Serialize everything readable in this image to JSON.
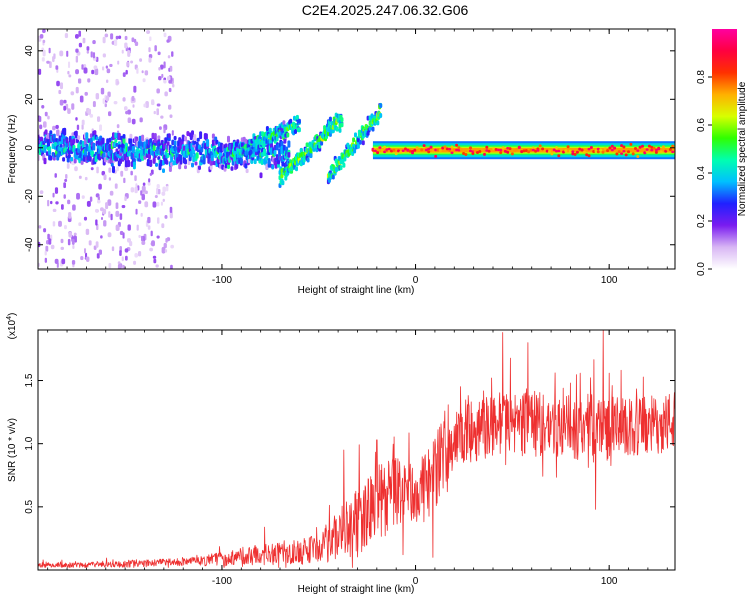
{
  "figure_title": "C2E4.2025.247.06.32.G06",
  "chart_data": [
    {
      "type": "heatmap",
      "title": "",
      "xlabel": "Height of straight line (km)",
      "ylabel": "Frequency (Hz)",
      "xlim": [
        -195,
        134
      ],
      "ylim": [
        -50,
        49
      ],
      "xticks": [
        -100,
        0,
        100
      ],
      "yticks": [
        -40,
        -20,
        0,
        20,
        40
      ],
      "colorbar": {
        "label": "Normalized spectral amplitude",
        "range": [
          0,
          1
        ],
        "ticks": [
          "0.0",
          "0.2",
          "0.4",
          "0.6",
          "0.8"
        ],
        "tick_values": [
          0.0,
          0.2,
          0.4,
          0.6,
          0.8
        ],
        "colors": [
          "#ffffff",
          "#d8b6f4",
          "#7a1cf0",
          "#2020ff",
          "#00c0ff",
          "#00ffb0",
          "#30ff00",
          "#d8ff00",
          "#ffb000",
          "#ff3000",
          "#ff0040",
          "#ff00a0"
        ]
      },
      "features": [
        {
          "name": "scattered low-level noise",
          "x_range": [
            -195,
            -125
          ],
          "freq_range": [
            -50,
            49
          ],
          "amplitude": 0.1
        },
        {
          "name": "noisy band",
          "x_range": [
            -195,
            -65
          ],
          "center_freq_start": 0,
          "center_freq_end": -3,
          "amplitude": 0.35
        },
        {
          "name": "rising streak 1",
          "x_range": [
            -95,
            -60
          ],
          "freq_start": -3,
          "freq_end": 10,
          "amplitude": 0.45
        },
        {
          "name": "rising streak 2",
          "x_range": [
            -70,
            -38
          ],
          "freq_start": -12,
          "freq_end": 12,
          "amplitude": 0.5
        },
        {
          "name": "rising streak 3",
          "x_range": [
            -45,
            -18
          ],
          "freq_start": -12,
          "freq_end": 15,
          "amplitude": 0.5
        },
        {
          "name": "steady strong band",
          "x_range": [
            -22,
            134
          ],
          "center_freq": -1,
          "amplitude": 0.85
        }
      ]
    },
    {
      "type": "line",
      "title": "",
      "xlabel": "Height of straight line (km)",
      "ylabel": "SNR (10 * v/v)",
      "y_multiplier": "(x10",
      "y_multiplier_exp": "4",
      "y_multiplier_close": ")",
      "xlim": [
        -195,
        134
      ],
      "ylim": [
        0,
        1.9
      ],
      "xticks": [
        -100,
        0,
        100
      ],
      "yticks": [
        "0.5",
        "1.0",
        "1.5"
      ],
      "ytick_values": [
        0.5,
        1.0,
        1.5
      ],
      "color": "#ee3030",
      "series": [
        {
          "name": "SNR",
          "x": [
            -195,
            -175,
            -150,
            -125,
            -110,
            -100,
            -90,
            -80,
            -70,
            -60,
            -50,
            -45,
            -40,
            -35,
            -30,
            -25,
            -20,
            -15,
            -10,
            -5,
            0,
            5,
            10,
            15,
            20,
            25,
            30,
            35,
            40,
            45,
            50,
            60,
            70,
            80,
            90,
            100,
            110,
            120,
            130,
            134
          ],
          "mean": [
            0.04,
            0.04,
            0.05,
            0.06,
            0.07,
            0.09,
            0.11,
            0.12,
            0.13,
            0.14,
            0.18,
            0.22,
            0.28,
            0.32,
            0.38,
            0.45,
            0.52,
            0.58,
            0.62,
            0.62,
            0.6,
            0.65,
            0.78,
            0.95,
            1.02,
            1.07,
            1.1,
            1.12,
            1.15,
            1.17,
            1.16,
            1.16,
            1.14,
            1.12,
            1.15,
            1.12,
            1.12,
            1.14,
            1.17,
            1.18
          ],
          "spread": [
            0.02,
            0.02,
            0.03,
            0.03,
            0.04,
            0.06,
            0.07,
            0.08,
            0.09,
            0.1,
            0.14,
            0.16,
            0.2,
            0.23,
            0.26,
            0.28,
            0.3,
            0.3,
            0.28,
            0.26,
            0.25,
            0.28,
            0.3,
            0.28,
            0.25,
            0.24,
            0.24,
            0.25,
            0.26,
            0.26,
            0.26,
            0.26,
            0.26,
            0.26,
            0.26,
            0.26,
            0.24,
            0.24,
            0.24,
            0.24
          ],
          "peaks": [
            {
              "x": 45,
              "y": 1.88
            },
            {
              "x": 97,
              "y": 1.9
            },
            {
              "x": 58,
              "y": 1.8
            },
            {
              "x": 93,
              "y": 0.48
            },
            {
              "x": 9,
              "y": 0.1
            },
            {
              "x": -37,
              "y": 0.95
            },
            {
              "x": -20,
              "y": 1.03
            },
            {
              "x": -78,
              "y": 0.34
            }
          ]
        }
      ]
    }
  ]
}
